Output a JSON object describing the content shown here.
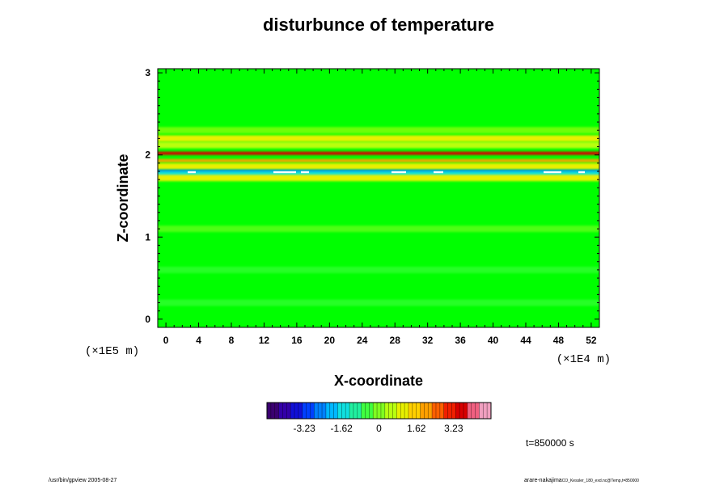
{
  "chart_data": {
    "type": "heatmap",
    "title": "disturbunce of temperature",
    "xlabel": "X-coordinate",
    "ylabel": "Z-coordinate",
    "x_unit": "(×1E4 m)",
    "y_unit": "(×1E5 m)",
    "xlim": [
      -1,
      53
    ],
    "ylim": [
      -0.1,
      3.05
    ],
    "x_ticks": [
      0,
      4,
      8,
      12,
      16,
      20,
      24,
      28,
      32,
      36,
      40,
      44,
      48,
      52
    ],
    "y_ticks": [
      0,
      1,
      2,
      3
    ],
    "colorbar": {
      "range": [
        -4.845,
        4.845
      ],
      "ticks": [
        -3.23,
        -1.62,
        0,
        1.62,
        3.23
      ],
      "tick_labels": [
        "-3.23",
        "-1.62",
        "0",
        "1.62",
        "3.23"
      ],
      "colors": [
        "#3a0070",
        "#3300a8",
        "#1010d8",
        "#0040ff",
        "#0080ff",
        "#00b8ff",
        "#10e0e0",
        "#20f0a0",
        "#40ff40",
        "#80ff20",
        "#b8ff10",
        "#e8f000",
        "#ffd000",
        "#ffa000",
        "#ff6000",
        "#f02000",
        "#d80000",
        "#f06080",
        "#f0a0c0"
      ]
    },
    "bands": [
      {
        "z": 2.3,
        "value": 0.4
      },
      {
        "z": 2.2,
        "value": 1.2
      },
      {
        "z": 2.12,
        "value": 0.6
      },
      {
        "z": 2.02,
        "value": 3.8
      },
      {
        "z": 1.93,
        "value": 2.2
      },
      {
        "z": 1.86,
        "value": 0.8
      },
      {
        "z": 1.8,
        "value": -2.8
      },
      {
        "z": 1.76,
        "value": -1.4
      },
      {
        "z": 1.72,
        "value": 0.9
      },
      {
        "z": 1.1,
        "value": 0.2
      },
      {
        "z": 0.6,
        "value": -0.5
      },
      {
        "z": 0.2,
        "value": -0.3
      }
    ]
  },
  "time_label": "t=850000 s",
  "footer": {
    "left": "/usr/bin/gpview 2005-08-27",
    "right": "arare-nakajima",
    "right_small": "CO_Kessler_180_exd.nc@Temp,t=850000"
  },
  "colors": {
    "background": "#00ff00",
    "white_specks": "#ffffff"
  }
}
